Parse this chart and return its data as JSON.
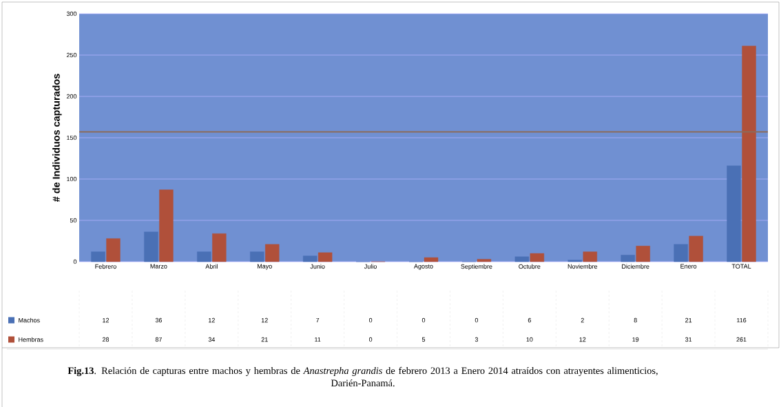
{
  "chart_data": {
    "type": "bar",
    "ylabel": "# de Individuos capturados",
    "categories": [
      "Febrero",
      "Marzo",
      "Abril",
      "Mayo",
      "Junio",
      "Julio",
      "Agosto",
      "Septiembre",
      "Octubre",
      "Noviembre",
      "Diciembre",
      "Enero",
      "TOTAL"
    ],
    "series": [
      {
        "name": "Machos",
        "color": "#4a70b5",
        "values": [
          12,
          36,
          12,
          12,
          7,
          0,
          0,
          0,
          6,
          2,
          8,
          21,
          116
        ]
      },
      {
        "name": "Hembras",
        "color": "#b0503a",
        "values": [
          28,
          87,
          34,
          21,
          11,
          0,
          5,
          3,
          10,
          12,
          19,
          31,
          261
        ]
      }
    ],
    "ylim": [
      0,
      300
    ],
    "yticks": [
      0,
      50,
      100,
      150,
      200,
      250,
      300
    ],
    "grid": "y",
    "legend": "bottom left",
    "data_labels": true,
    "ref_lines": [
      {
        "axis": "y",
        "value": 157,
        "color": "#8b6b5a"
      }
    ],
    "annotations": [
      "**Fig.13**. Relación de capturas entre machos y hembras de *Anastrepha grandis* de febrero 2013 a Enero 2014 atraídos con atrayentes alimenticios, Darién-Panamá."
    ]
  }
}
